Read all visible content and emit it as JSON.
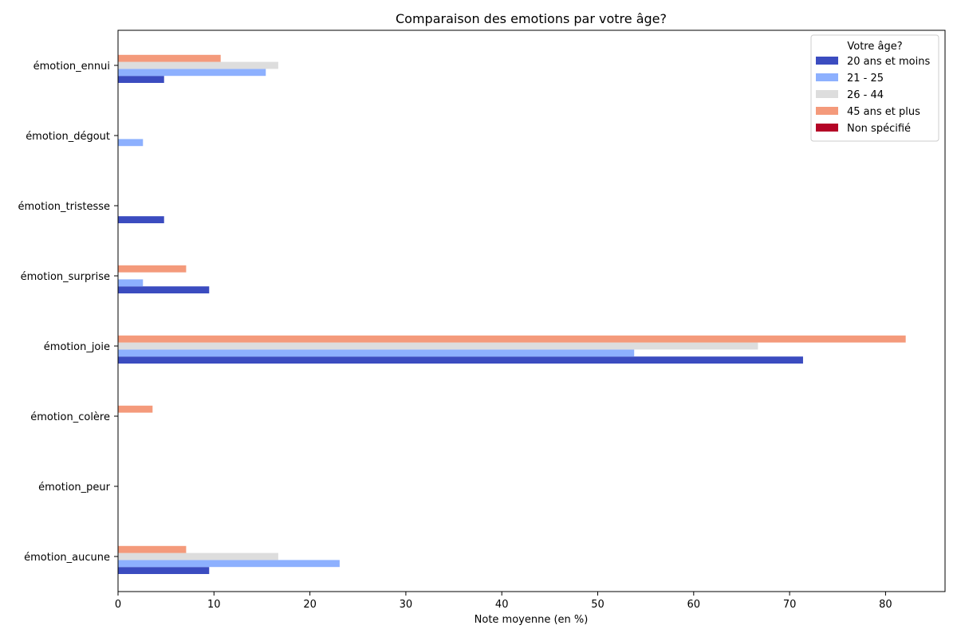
{
  "chart_data": {
    "type": "bar",
    "orientation": "horizontal",
    "title": "Comparaison des emotions par votre âge?",
    "xlabel": "Note moyenne (en %)",
    "ylabel": "",
    "xlim": [
      0,
      86.2
    ],
    "xticks": [
      0,
      10,
      20,
      30,
      40,
      50,
      60,
      70,
      80
    ],
    "grid": false,
    "legend": {
      "title": "Votre âge?",
      "placement": "top-right"
    },
    "categories": [
      "émotion_aucune",
      "émotion_peur",
      "émotion_colère",
      "émotion_joie",
      "émotion_surprise",
      "émotion_tristesse",
      "émotion_dégout",
      "émotion_ennui"
    ],
    "series": [
      {
        "name": "20 ans et moins",
        "color": "#3b4cc0",
        "values": [
          9.5,
          0,
          0,
          71.4,
          9.5,
          4.8,
          0,
          4.8
        ]
      },
      {
        "name": "21 - 25",
        "color": "#8db0fe",
        "values": [
          23.1,
          0,
          0,
          53.8,
          2.6,
          0,
          2.6,
          15.4
        ]
      },
      {
        "name": "26 - 44",
        "color": "#dddddd",
        "values": [
          16.7,
          0,
          0,
          66.7,
          0,
          0,
          0,
          16.7
        ]
      },
      {
        "name": "45 ans et plus",
        "color": "#f49a7b",
        "values": [
          7.1,
          0,
          3.6,
          82.1,
          7.1,
          0,
          0,
          10.7
        ]
      },
      {
        "name": "Non spécifié",
        "color": "#b40426",
        "values": [
          0,
          0,
          0,
          0,
          0,
          0,
          0,
          0
        ]
      }
    ]
  }
}
